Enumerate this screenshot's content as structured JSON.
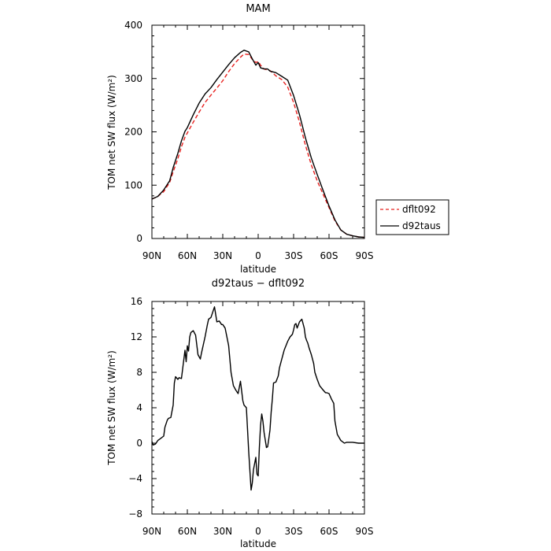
{
  "legend": {
    "placement": "right of top panel"
  },
  "chart_data": [
    {
      "type": "line",
      "title": "MAM",
      "xlabel": "latitude",
      "ylabel": "TOM net SW flux (W/m²)",
      "xlim": [
        90,
        -90
      ],
      "ylim": [
        0,
        400
      ],
      "xticks": [
        90,
        60,
        30,
        0,
        -30,
        -60,
        -90
      ],
      "xtick_labels": [
        "90N",
        "60N",
        "30N",
        "0",
        "30S",
        "60S",
        "90S"
      ],
      "yticks": [
        0,
        100,
        200,
        300,
        400
      ],
      "ytick_labels": [
        "0",
        "100",
        "200",
        "300",
        "400"
      ],
      "grid": false,
      "x": [
        90,
        85,
        80,
        75,
        72,
        68,
        65,
        62,
        60,
        55,
        50,
        45,
        40,
        35,
        30,
        25,
        20,
        15,
        12,
        8,
        5,
        2,
        0,
        -2,
        -5,
        -8,
        -10,
        -15,
        -20,
        -25,
        -30,
        -35,
        -40,
        -45,
        -50,
        -55,
        -60,
        -65,
        -70,
        -75,
        -80,
        -85,
        -90
      ],
      "series": [
        {
          "name": "dflt092",
          "color": "#e8211f",
          "dash": "dashed",
          "values": [
            74,
            79,
            88,
            105,
            125,
            150,
            172,
            190,
            198,
            218,
            237,
            255,
            269,
            282,
            296,
            313,
            328,
            340,
            346,
            345,
            336,
            330,
            332,
            325,
            318,
            316,
            315,
            305,
            298,
            284,
            255,
            218,
            175,
            138,
            108,
            83,
            58,
            33,
            16,
            8,
            5,
            3,
            2
          ]
        },
        {
          "name": "d92taus",
          "color": "#000000",
          "dash": "solid",
          "values": [
            74,
            79,
            91,
            108,
            133,
            160,
            183,
            201,
            208,
            232,
            254,
            271,
            283,
            298,
            312,
            326,
            339,
            349,
            353,
            350,
            337,
            325,
            330,
            320,
            318,
            318,
            314,
            311,
            304,
            297,
            268,
            232,
            189,
            151,
            120,
            90,
            61,
            35,
            16,
            8,
            5,
            3,
            2
          ]
        }
      ]
    },
    {
      "type": "line",
      "title": "d92taus − dflt092",
      "xlabel": "latitude",
      "ylabel": "TOM net SW flux (W/m²)",
      "xlim": [
        90,
        -90
      ],
      "ylim": [
        -8,
        16
      ],
      "xticks": [
        90,
        60,
        30,
        0,
        -30,
        -60,
        -90
      ],
      "xtick_labels": [
        "90N",
        "60N",
        "30N",
        "0",
        "30S",
        "60S",
        "90S"
      ],
      "yticks": [
        -8,
        -4,
        0,
        4,
        8,
        12,
        16
      ],
      "ytick_labels": [
        "−8",
        "−4",
        "0",
        "4",
        "8",
        "12",
        "16"
      ],
      "grid": false,
      "series": [
        {
          "name": "d92taus − dflt092",
          "color": "#000000",
          "x": [
            90,
            89,
            87,
            85,
            83,
            80,
            79,
            77,
            76,
            74,
            72,
            71,
            70,
            68,
            67,
            65,
            62,
            61,
            60,
            59,
            58,
            57,
            55,
            53,
            51,
            49,
            48,
            45,
            43,
            42,
            40,
            38,
            37,
            35,
            33,
            31,
            30,
            28,
            25,
            23,
            21,
            19,
            17,
            15,
            13,
            12,
            10,
            8,
            6,
            5,
            4,
            2,
            1,
            0,
            -1,
            -2,
            -3,
            -4,
            -5,
            -7,
            -8,
            -9,
            -10,
            -11,
            -12,
            -13,
            -15,
            -17,
            -18,
            -20,
            -22,
            -25,
            -27,
            -29,
            -30,
            -31,
            -32,
            -33,
            -35,
            -37,
            -39,
            -40,
            -41,
            -42,
            -43,
            -45,
            -47,
            -48,
            -50,
            -52,
            -55,
            -57,
            -58,
            -60,
            -62,
            -64,
            -65,
            -67,
            -70,
            -73,
            -75,
            -80,
            -85,
            -90
          ],
          "values": [
            0.2,
            -0.2,
            -0.1,
            0.3,
            0.5,
            0.8,
            1.8,
            2.6,
            2.8,
            2.9,
            4.3,
            6.8,
            7.5,
            7.2,
            7.4,
            7.3,
            10.5,
            9.2,
            11.0,
            10.4,
            12.0,
            12.5,
            12.7,
            12.2,
            10.0,
            9.5,
            10.2,
            12.0,
            13.4,
            14.0,
            14.2,
            15.0,
            15.4,
            13.7,
            13.8,
            13.4,
            13.4,
            13.0,
            11.0,
            8.0,
            6.5,
            6.0,
            5.6,
            7.0,
            4.8,
            4.3,
            4.0,
            -1.0,
            -5.3,
            -4.5,
            -3.0,
            -1.6,
            -3.5,
            -3.7,
            -0.5,
            2.0,
            3.3,
            2.5,
            1.2,
            -0.5,
            -0.4,
            0.5,
            1.5,
            3.5,
            5.0,
            6.8,
            6.9,
            7.6,
            8.5,
            9.5,
            10.5,
            11.5,
            12.0,
            12.3,
            12.8,
            13.4,
            13.5,
            13.0,
            13.7,
            14.0,
            13.0,
            12.0,
            11.6,
            11.3,
            10.8,
            10.0,
            9.0,
            8.0,
            7.2,
            6.5,
            6.0,
            5.7,
            5.7,
            5.6,
            5.0,
            4.5,
            2.5,
            1.0,
            0.3,
            0.0,
            0.1,
            0.1,
            0.0,
            0.0
          ]
        }
      ]
    }
  ]
}
